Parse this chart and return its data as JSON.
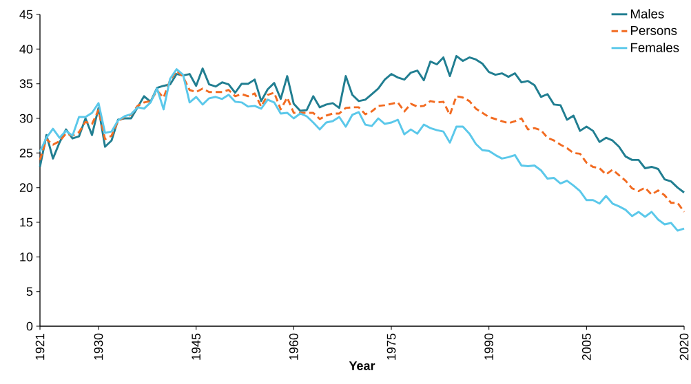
{
  "chart_data": {
    "type": "line",
    "xlabel": "Year",
    "x": [
      1921,
      1922,
      1923,
      1924,
      1925,
      1926,
      1927,
      1928,
      1929,
      1930,
      1931,
      1932,
      1933,
      1934,
      1935,
      1936,
      1937,
      1938,
      1939,
      1940,
      1941,
      1942,
      1943,
      1944,
      1945,
      1946,
      1947,
      1948,
      1949,
      1950,
      1951,
      1952,
      1953,
      1954,
      1955,
      1956,
      1957,
      1958,
      1959,
      1960,
      1961,
      1962,
      1963,
      1964,
      1965,
      1966,
      1967,
      1968,
      1969,
      1970,
      1971,
      1972,
      1973,
      1974,
      1975,
      1976,
      1977,
      1978,
      1979,
      1980,
      1981,
      1982,
      1983,
      1984,
      1985,
      1986,
      1987,
      1988,
      1989,
      1990,
      1991,
      1992,
      1993,
      1994,
      1995,
      1996,
      1997,
      1998,
      1999,
      2000,
      2001,
      2002,
      2003,
      2004,
      2005,
      2006,
      2007,
      2008,
      2009,
      2010,
      2011,
      2012,
      2013,
      2014,
      2015,
      2016,
      2017,
      2018,
      2019,
      2020
    ],
    "series": [
      {
        "name": "Males",
        "color": "#217e91",
        "line_style": "solid",
        "values": [
          23.0,
          27.6,
          24.2,
          26.5,
          28.4,
          27.1,
          27.4,
          30.0,
          27.6,
          31.5,
          25.9,
          26.8,
          29.8,
          30.0,
          30.0,
          31.6,
          33.2,
          32.4,
          34.4,
          34.7,
          34.9,
          36.4,
          36.2,
          36.4,
          34.7,
          37.2,
          34.9,
          34.6,
          35.2,
          34.9,
          33.7,
          35.0,
          35.0,
          35.6,
          32.5,
          34.2,
          35.1,
          32.8,
          36.1,
          32.1,
          31.1,
          31.2,
          33.2,
          31.6,
          32.0,
          32.2,
          31.5,
          36.1,
          33.4,
          32.5,
          32.7,
          33.5,
          34.3,
          35.6,
          36.4,
          35.9,
          35.6,
          36.6,
          36.9,
          35.5,
          38.2,
          37.8,
          38.8,
          36.1,
          39.0,
          38.3,
          38.8,
          38.5,
          37.9,
          36.7,
          36.3,
          36.5,
          36.0,
          36.5,
          35.2,
          35.4,
          34.8,
          33.1,
          33.5,
          32.0,
          31.9,
          29.8,
          30.4,
          28.2,
          28.8,
          28.2,
          26.6,
          27.2,
          26.8,
          25.9,
          24.5,
          24.0,
          24.0,
          22.8,
          23.0,
          22.7,
          21.2,
          20.9,
          20.0,
          19.3
        ]
      },
      {
        "name": "Persons",
        "color": "#f26b21",
        "line_style": "dashed",
        "values": [
          24.0,
          27.0,
          26.2,
          26.7,
          27.8,
          27.5,
          28.0,
          29.5,
          29.2,
          31.2,
          27.0,
          27.5,
          29.6,
          30.2,
          30.5,
          31.8,
          32.3,
          32.5,
          34.0,
          33.0,
          35.5,
          36.9,
          36.0,
          34.1,
          33.8,
          34.3,
          33.8,
          33.8,
          33.8,
          34.1,
          33.2,
          33.5,
          33.2,
          33.6,
          31.7,
          33.4,
          33.7,
          31.3,
          33.0,
          30.8,
          30.8,
          30.8,
          30.8,
          29.9,
          30.4,
          30.7,
          30.7,
          31.5,
          31.6,
          31.6,
          30.6,
          31.0,
          31.8,
          31.9,
          32.1,
          32.3,
          31.0,
          32.1,
          31.7,
          31.8,
          32.5,
          32.3,
          32.4,
          30.5,
          33.2,
          33.0,
          32.5,
          31.4,
          30.8,
          30.2,
          29.9,
          29.6,
          29.3,
          29.6,
          30.0,
          28.4,
          28.6,
          28.3,
          27.2,
          26.8,
          26.2,
          25.7,
          25.0,
          24.9,
          23.6,
          23.0,
          22.8,
          21.9,
          22.6,
          21.8,
          21.0,
          19.9,
          19.5,
          20.0,
          19.0,
          19.6,
          18.9,
          17.8,
          17.8,
          16.5
        ]
      },
      {
        "name": "Females",
        "color": "#5bc8ea",
        "line_style": "solid",
        "values": [
          25.2,
          27.2,
          28.5,
          27.2,
          28.2,
          27.5,
          30.2,
          30.2,
          30.8,
          32.2,
          27.9,
          28.1,
          29.7,
          30.3,
          30.6,
          31.6,
          31.4,
          32.3,
          34.3,
          31.3,
          35.7,
          37.1,
          36.3,
          32.3,
          33.1,
          32.0,
          32.9,
          33.1,
          32.8,
          33.4,
          32.4,
          32.3,
          31.7,
          31.8,
          31.4,
          32.7,
          32.3,
          30.7,
          30.8,
          30.0,
          30.7,
          30.3,
          29.4,
          28.4,
          29.4,
          29.6,
          30.2,
          28.8,
          30.5,
          30.9,
          29.1,
          28.9,
          30.0,
          29.2,
          29.4,
          29.8,
          27.7,
          28.4,
          27.8,
          29.1,
          28.6,
          28.3,
          28.1,
          26.5,
          28.8,
          28.8,
          27.8,
          26.3,
          25.4,
          25.3,
          24.7,
          24.2,
          24.4,
          24.7,
          23.2,
          23.1,
          23.2,
          22.5,
          21.3,
          21.4,
          20.6,
          21.0,
          20.3,
          19.5,
          18.2,
          18.2,
          17.7,
          18.8,
          17.7,
          17.3,
          16.8,
          15.9,
          16.5,
          15.8,
          16.5,
          15.4,
          14.7,
          14.9,
          13.8,
          14.1
        ]
      }
    ],
    "xlim": [
      1921,
      2020
    ],
    "xticks": [
      1921,
      1930,
      1945,
      1960,
      1975,
      1990,
      2005,
      2020
    ],
    "ylim": [
      0,
      45
    ],
    "yticks": [
      0,
      5,
      10,
      15,
      20,
      25,
      30,
      35,
      40,
      45
    ],
    "grid": false,
    "legend": "top right",
    "marker": "none"
  }
}
